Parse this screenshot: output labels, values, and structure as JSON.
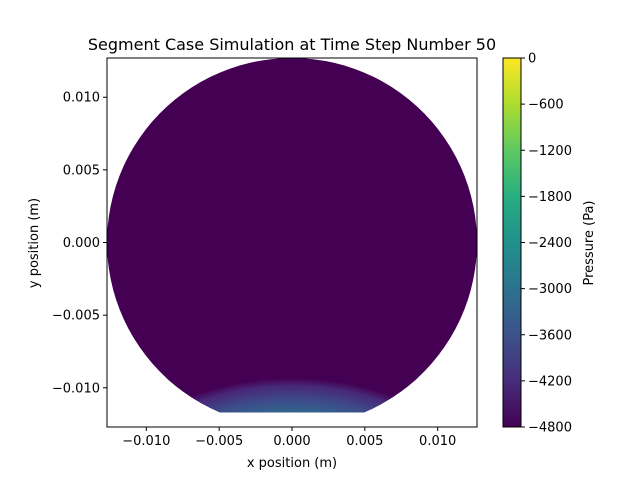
{
  "chart_data": {
    "type": "heatmap",
    "title": "Segment Case Simulation at Time Step Number 50",
    "xlabel": "x position (m)",
    "ylabel": "y position (m)",
    "xlim": [
      -0.0127,
      0.0127
    ],
    "ylim": [
      -0.0127,
      0.0127
    ],
    "x_ticks": [
      -0.01,
      -0.005,
      0.0,
      0.005,
      0.01
    ],
    "x_tick_labels": [
      "−0.010",
      "−0.005",
      "0.000",
      "0.005",
      "0.010"
    ],
    "y_ticks": [
      0.01,
      0.005,
      0.0,
      -0.005,
      -0.01
    ],
    "y_tick_labels": [
      "0.010",
      "0.005",
      "0.000",
      "−0.005",
      "−0.010"
    ],
    "domain_radius": 0.0127,
    "cut_y": -0.0117,
    "colormap": "viridis",
    "colorbar": {
      "label": "Pressure (Pa)",
      "min": -4800,
      "max": 0,
      "ticks": [
        0,
        -600,
        -1200,
        -1800,
        -2400,
        -3000,
        -3600,
        -4200,
        -4800
      ],
      "tick_labels": [
        "0",
        "−600",
        "−1200",
        "−1800",
        "−2400",
        "−3000",
        "−3600",
        "−4200",
        "−4800"
      ]
    },
    "grid": false
  }
}
